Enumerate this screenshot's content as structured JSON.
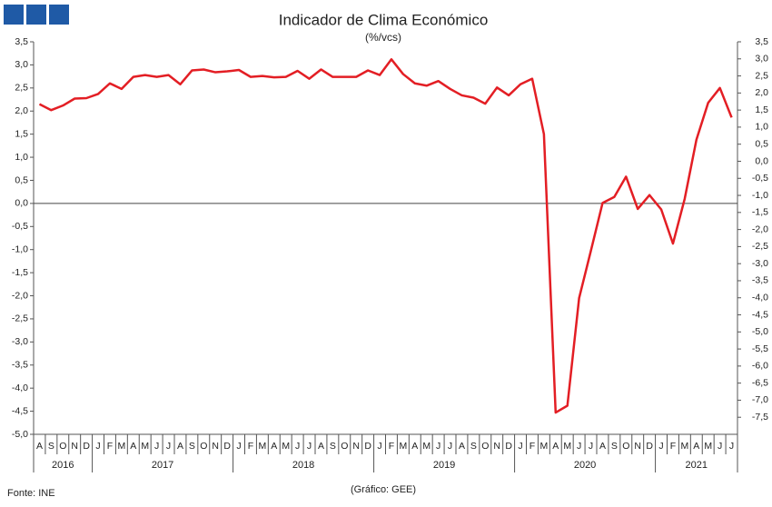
{
  "chart_data": {
    "type": "line",
    "title": "Indicador de Clima Económico",
    "subtitle": "(%/vcs)",
    "source": "Fonte: INE",
    "credit": "(Gráfico: GEE)",
    "categories": [
      "A",
      "S",
      "O",
      "N",
      "D",
      "J",
      "F",
      "M",
      "A",
      "M",
      "J",
      "J",
      "A",
      "S",
      "O",
      "N",
      "D",
      "J",
      "F",
      "M",
      "A",
      "M",
      "J",
      "J",
      "A",
      "S",
      "O",
      "N",
      "D",
      "J",
      "F",
      "M",
      "A",
      "M",
      "J",
      "J",
      "A",
      "S",
      "O",
      "N",
      "D",
      "J",
      "F",
      "M",
      "A",
      "M",
      "J",
      "J",
      "A",
      "S",
      "O",
      "N",
      "D",
      "J",
      "F",
      "M",
      "A",
      "M",
      "J",
      "J"
    ],
    "years": [
      "2016",
      "2017",
      "2018",
      "2019",
      "2020",
      "2021"
    ],
    "series": [
      {
        "color": "#e31e24",
        "values": [
          2.15,
          2.02,
          2.12,
          2.27,
          2.28,
          2.37,
          2.6,
          2.48,
          2.74,
          2.78,
          2.74,
          2.78,
          2.58,
          2.88,
          2.9,
          2.84,
          2.86,
          2.89,
          2.74,
          2.76,
          2.73,
          2.74,
          2.87,
          2.7,
          2.9,
          2.74,
          2.74,
          2.74,
          2.88,
          2.78,
          3.12,
          2.8,
          2.6,
          2.55,
          2.65,
          2.48,
          2.34,
          2.29,
          2.16,
          2.51,
          2.34,
          2.58,
          2.7,
          1.5,
          -4.53,
          -4.38,
          -2.05,
          -1.03,
          0.01,
          0.14,
          0.58,
          -0.12,
          0.18,
          -0.13,
          -0.87,
          0.1,
          1.38,
          2.18,
          2.5,
          1.86
        ]
      }
    ],
    "ylim": [
      -5,
      3.5
    ],
    "yticks": [
      {
        "value": -5,
        "label": "-5,0"
      },
      {
        "value": -4.5,
        "label": "-4,5"
      },
      {
        "value": -4,
        "label": "-4,0"
      },
      {
        "value": -3.5,
        "label": "-3,5"
      },
      {
        "value": -3,
        "label": "-3,0"
      },
      {
        "value": -2.5,
        "label": "-2,5"
      },
      {
        "value": -2,
        "label": "-2,0"
      },
      {
        "value": -1.5,
        "label": "-1,5"
      },
      {
        "value": -1,
        "label": "-1,0"
      },
      {
        "value": -0.5,
        "label": "-0,5"
      },
      {
        "value": 0,
        "label": "0,0"
      },
      {
        "value": 0.5,
        "label": "0,5"
      },
      {
        "value": 1,
        "label": "1,0"
      },
      {
        "value": 1.5,
        "label": "1,5"
      },
      {
        "value": 2,
        "label": "2,0"
      },
      {
        "value": 2.5,
        "label": "2,5"
      },
      {
        "value": 3,
        "label": "3,0"
      },
      {
        "value": 3.5,
        "label": "3,5"
      }
    ],
    "y2lim": [
      -8,
      3.5
    ],
    "y2ticks": [
      {
        "value": -7.5,
        "label": "-7,5"
      },
      {
        "value": -7,
        "label": "-7,0"
      },
      {
        "value": -6.5,
        "label": "-6,5"
      },
      {
        "value": -6,
        "label": "-6,0"
      },
      {
        "value": -5.5,
        "label": "-5,5"
      },
      {
        "value": -5,
        "label": "-5,0"
      },
      {
        "value": -4.5,
        "label": "-4,5"
      },
      {
        "value": -4,
        "label": "-4,0"
      },
      {
        "value": -3.5,
        "label": "-3,5"
      },
      {
        "value": -3,
        "label": "-3,0"
      },
      {
        "value": -2.5,
        "label": "-2,5"
      },
      {
        "value": -2,
        "label": "-2,0"
      },
      {
        "value": -1.5,
        "label": "-1,5"
      },
      {
        "value": -1,
        "label": "-1,0"
      },
      {
        "value": -0.5,
        "label": "-0,5"
      },
      {
        "value": 0,
        "label": "0,0"
      },
      {
        "value": 0.5,
        "label": "0,5"
      },
      {
        "value": 1,
        "label": "1,0"
      },
      {
        "value": 1.5,
        "label": "1,5"
      },
      {
        "value": 2,
        "label": "2,0"
      },
      {
        "value": 2.5,
        "label": "2,5"
      },
      {
        "value": 3,
        "label": "3,0"
      },
      {
        "value": 3.5,
        "label": "3,5"
      }
    ],
    "grid": false
  }
}
